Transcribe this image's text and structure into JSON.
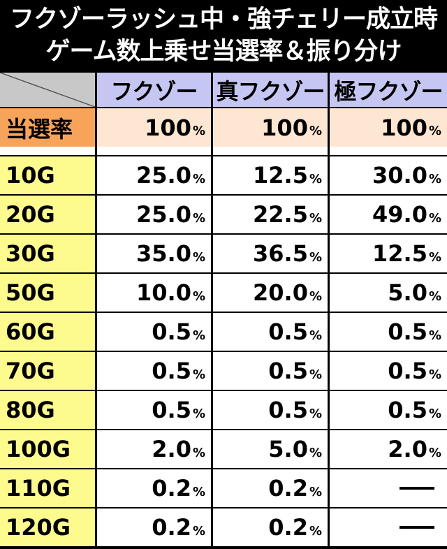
{
  "title": {
    "line1": "フクゾーラッシュ中・強チェリー成立時",
    "line2": "ゲーム数上乗せ当選率＆振り分け"
  },
  "columns": [
    "フクゾー",
    "真フクゾー",
    "極フクゾー"
  ],
  "rate": {
    "label": "当選率",
    "values": [
      "100",
      "100",
      "100"
    ]
  },
  "percent_sign": "%",
  "rows": [
    {
      "label": "10G",
      "values": [
        "25.0",
        "12.5",
        "30.0"
      ]
    },
    {
      "label": "20G",
      "values": [
        "25.0",
        "22.5",
        "49.0"
      ]
    },
    {
      "label": "30G",
      "values": [
        "35.0",
        "36.5",
        "12.5"
      ]
    },
    {
      "label": "50G",
      "values": [
        "10.0",
        "20.0",
        "5.0"
      ]
    },
    {
      "label": "60G",
      "values": [
        "0.5",
        "0.5",
        "0.5"
      ]
    },
    {
      "label": "70G",
      "values": [
        "0.5",
        "0.5",
        "0.5"
      ]
    },
    {
      "label": "80G",
      "values": [
        "0.5",
        "0.5",
        "0.5"
      ]
    },
    {
      "label": "100G",
      "values": [
        "2.0",
        "5.0",
        "2.0"
      ]
    },
    {
      "label": "110G",
      "values": [
        "0.2",
        "0.2",
        "—"
      ]
    },
    {
      "label": "120G",
      "values": [
        "0.2",
        "0.2",
        "—"
      ]
    }
  ],
  "colors": {
    "header": "#c6c6f3",
    "rate_label": "#f7a45a",
    "rate_values": "#fde6d2",
    "row_labels": "#fdfb8e",
    "corner": "#c8c8c8"
  }
}
